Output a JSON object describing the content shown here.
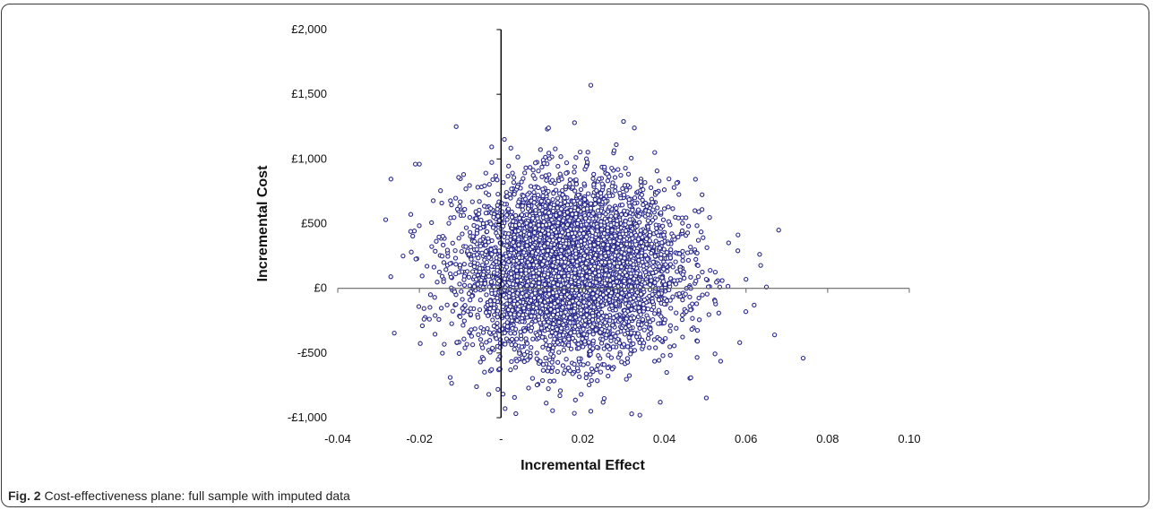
{
  "chart_data": {
    "type": "scatter",
    "title": "",
    "xlabel": "Incremental Effect",
    "ylabel": "Incremental Cost",
    "xlim": [
      -0.04,
      0.1
    ],
    "ylim": [
      -1000,
      2000
    ],
    "x_ticks": [
      -0.04,
      -0.02,
      0,
      0.02,
      0.04,
      0.06,
      0.08,
      0.1
    ],
    "x_tick_labels": [
      "-0.04",
      "-0.02",
      "-",
      "0.02",
      "0.04",
      "0.06",
      "0.08",
      "0.10"
    ],
    "y_ticks": [
      -1000,
      -500,
      0,
      500,
      1000,
      1500,
      2000
    ],
    "y_tick_labels": [
      "-£1,000",
      "-£500",
      "£0",
      "£500",
      "£1,000",
      "£1,500",
      "£2,000"
    ],
    "grid": false,
    "legend": "none",
    "marker": "hollow-circle",
    "marker_color": "#2b2b8c",
    "series": [
      {
        "points_description_count": 5000,
        "distribution": {
          "x_center": 0.017,
          "x_sd": 0.013,
          "y_center": 150,
          "y_sd": 330
        },
        "outliers": [
          [
            -0.027,
            90
          ],
          [
            -0.024,
            250
          ],
          [
            -0.021,
            960
          ],
          [
            -0.02,
            960
          ],
          [
            -0.011,
            1250
          ],
          [
            0.022,
            1570
          ],
          [
            0.03,
            1290
          ],
          [
            0.018,
            1280
          ],
          [
            0.074,
            -540
          ],
          [
            0.068,
            450
          ],
          [
            0.067,
            -360
          ],
          [
            0.065,
            10
          ],
          [
            0.062,
            -130
          ],
          [
            0.06,
            70
          ],
          [
            0.058,
            290
          ],
          [
            0.022,
            -950
          ],
          [
            0.032,
            -970
          ],
          [
            -0.003,
            -820
          ],
          [
            -0.006,
            -760
          ],
          [
            0.001,
            -930
          ],
          [
            0.039,
            -880
          ],
          [
            0.034,
            -980
          ]
        ]
      }
    ]
  },
  "caption": {
    "fig_label": "Fig. 2",
    "text": " Cost-effectiveness plane: full sample with imputed data"
  }
}
